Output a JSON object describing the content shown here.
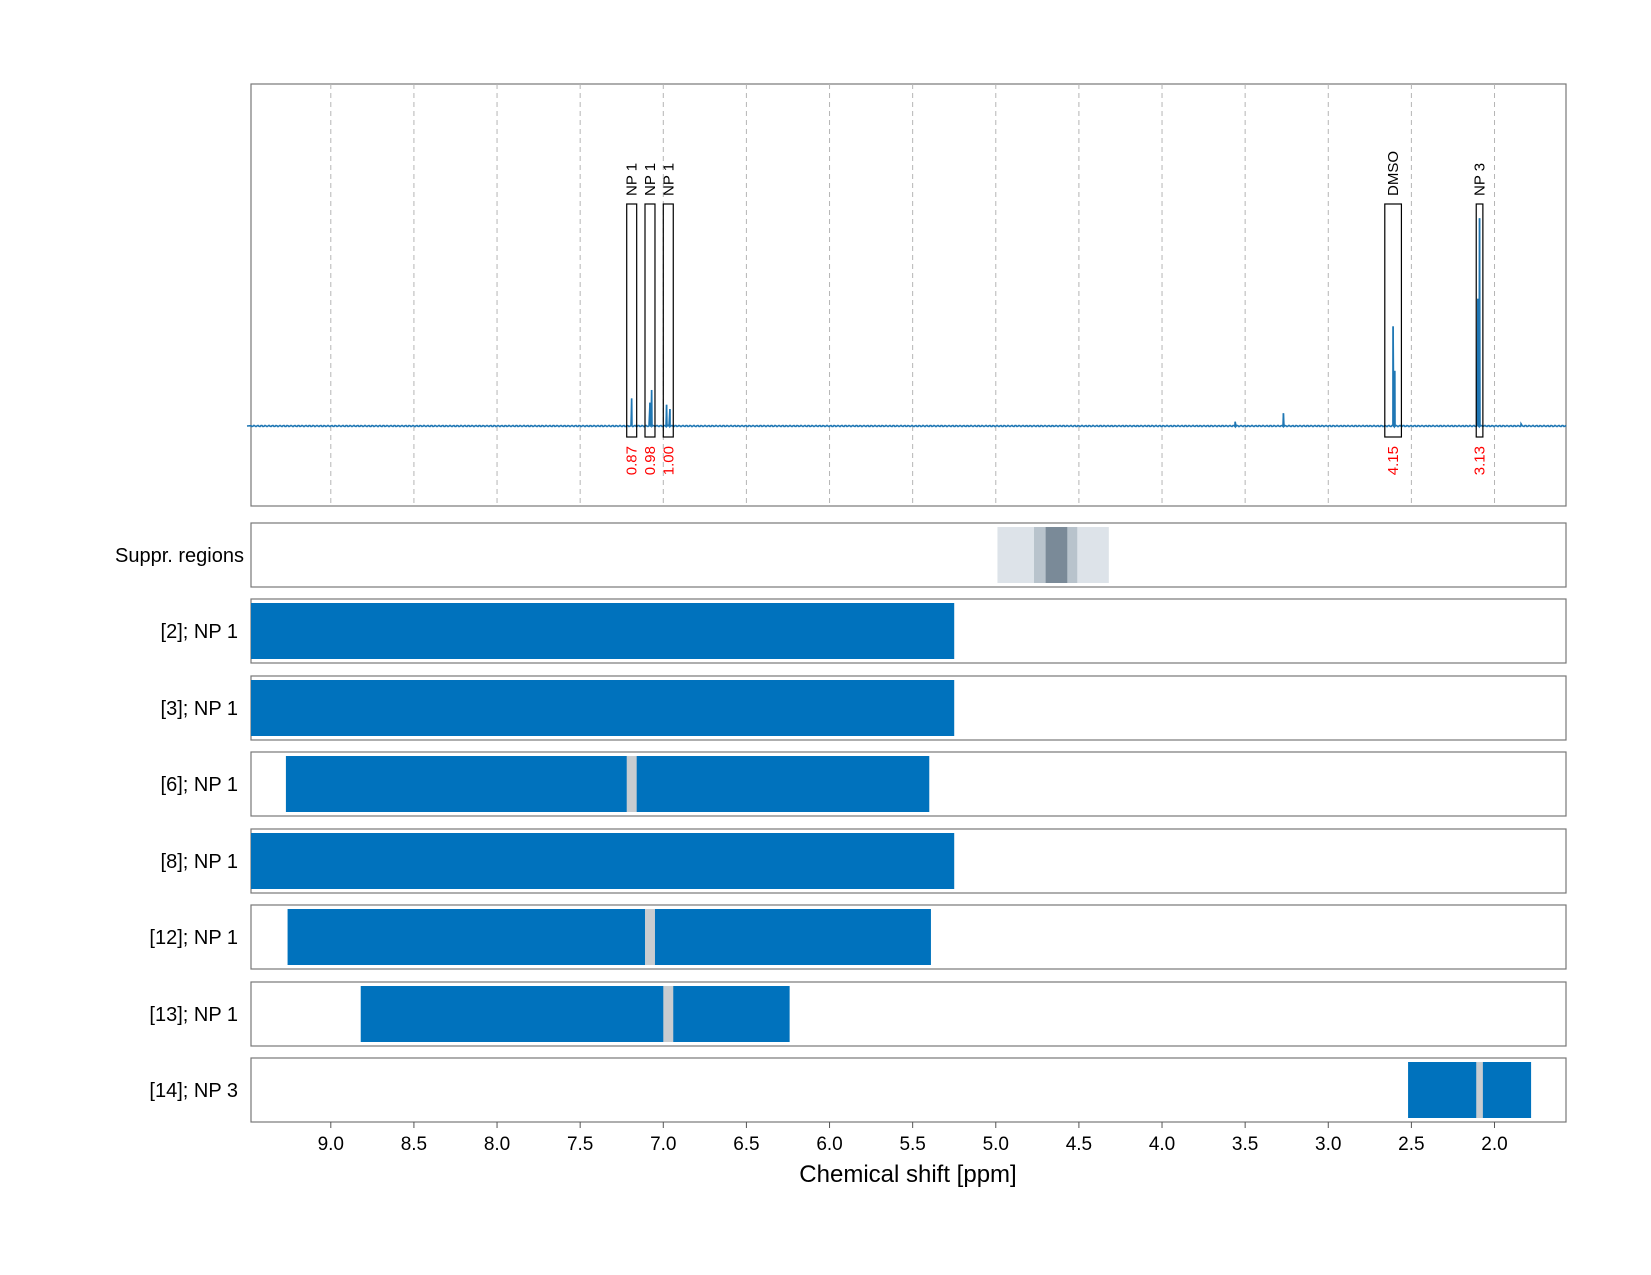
{
  "chart_data": {
    "type": "line",
    "xlabel": "Chemical shift [ppm]",
    "xlim": [
      9.48,
      1.57
    ],
    "x_reversed": true,
    "x_ticks": [
      "9.0",
      "8.5",
      "8.0",
      "7.5",
      "7.0",
      "6.5",
      "6.0",
      "5.5",
      "5.0",
      "4.5",
      "4.0",
      "3.5",
      "3.0",
      "2.5",
      "2.0"
    ],
    "x_tick_values": [
      9.0,
      8.5,
      8.0,
      7.5,
      7.0,
      6.5,
      6.0,
      5.5,
      5.0,
      4.5,
      4.0,
      3.5,
      3.0,
      2.5,
      2.0
    ],
    "grid": "vertical dashed",
    "spectrum": {
      "color": "#1f77b4",
      "peaks": [
        {
          "x": 7.19,
          "height": 0.13
        },
        {
          "x": 7.08,
          "height": 0.11
        },
        {
          "x": 7.07,
          "height": 0.17
        },
        {
          "x": 6.98,
          "height": 0.1
        },
        {
          "x": 6.96,
          "height": 0.08
        },
        {
          "x": 3.56,
          "height": 0.02
        },
        {
          "x": 3.27,
          "height": 0.06
        },
        {
          "x": 2.61,
          "height": 0.47
        },
        {
          "x": 2.6,
          "height": 0.26
        },
        {
          "x": 2.09,
          "height": 0.98
        },
        {
          "x": 2.1,
          "height": 0.6
        },
        {
          "x": 1.84,
          "height": 0.01
        }
      ]
    },
    "annotations": [
      {
        "label": "NP 1",
        "integral": "0.87",
        "x_from": 7.22,
        "x_to": 7.16
      },
      {
        "label": "NP 1",
        "integral": "0.98",
        "x_from": 7.11,
        "x_to": 7.05
      },
      {
        "label": "NP 1",
        "integral": "1.00",
        "x_from": 7.0,
        "x_to": 6.94
      },
      {
        "label": "DMSO",
        "integral": "4.15",
        "x_from": 2.66,
        "x_to": 2.56
      },
      {
        "label": "NP 3",
        "integral": "3.13",
        "x_from": 2.11,
        "x_to": 2.07
      }
    ],
    "suppression": {
      "label": "Suppr. regions",
      "regions": [
        {
          "x_from": 4.99,
          "x_to": 4.32,
          "shade": "#dde3e9"
        },
        {
          "x_from": 4.77,
          "x_to": 4.51,
          "shade": "#b8c3cc"
        },
        {
          "x_from": 4.7,
          "x_to": 4.57,
          "shade": "#7a8a98"
        }
      ]
    },
    "tracks": [
      {
        "label": "[2]; NP 1",
        "blocks": [
          [
            9.48,
            5.25
          ]
        ],
        "gaps": []
      },
      {
        "label": "[3]; NP 1",
        "blocks": [
          [
            9.48,
            5.25
          ]
        ],
        "gaps": []
      },
      {
        "label": "[6]; NP 1",
        "blocks": [
          [
            9.27,
            5.4
          ]
        ],
        "gaps": [
          [
            7.22,
            7.16
          ]
        ]
      },
      {
        "label": "[8]; NP 1",
        "blocks": [
          [
            9.48,
            5.25
          ]
        ],
        "gaps": []
      },
      {
        "label": "[12]; NP 1",
        "blocks": [
          [
            9.26,
            5.39
          ]
        ],
        "gaps": [
          [
            7.11,
            7.05
          ]
        ]
      },
      {
        "label": "[13]; NP 1",
        "blocks": [
          [
            8.82,
            6.24
          ]
        ],
        "gaps": [
          [
            7.0,
            6.94
          ]
        ]
      },
      {
        "label": "[14]; NP 3",
        "blocks": [
          [
            2.52,
            1.78
          ]
        ],
        "gaps": [
          [
            2.11,
            2.07
          ]
        ]
      }
    ],
    "colors": {
      "block": "#0072bd",
      "gap": "#c8ccd0",
      "annotation_text": "#ff0000"
    }
  }
}
